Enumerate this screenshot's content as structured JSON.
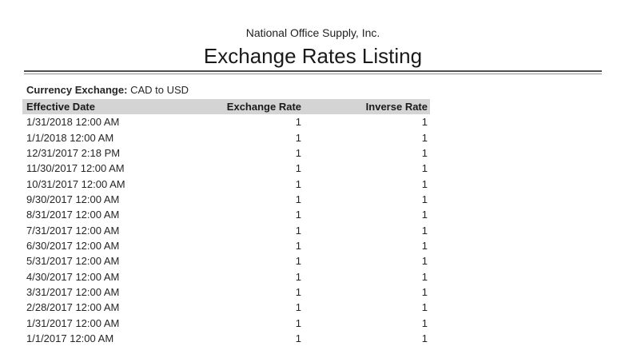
{
  "report": {
    "company": "National Office Supply, Inc.",
    "title": "Exchange Rates Listing",
    "filter_label": "Currency Exchange:",
    "filter_value": "CAD to USD",
    "table": {
      "columns": [
        "Effective Date",
        "Exchange Rate",
        "Inverse Rate"
      ],
      "rows": [
        {
          "effective_date": "1/31/2018 12:00 AM",
          "exchange_rate": "1",
          "inverse_rate": "1"
        },
        {
          "effective_date": "1/1/2018 12:00 AM",
          "exchange_rate": "1",
          "inverse_rate": "1"
        },
        {
          "effective_date": "12/31/2017 2:18 PM",
          "exchange_rate": "1",
          "inverse_rate": "1"
        },
        {
          "effective_date": "11/30/2017 12:00 AM",
          "exchange_rate": "1",
          "inverse_rate": "1"
        },
        {
          "effective_date": "10/31/2017 12:00 AM",
          "exchange_rate": "1",
          "inverse_rate": "1"
        },
        {
          "effective_date": "9/30/2017 12:00 AM",
          "exchange_rate": "1",
          "inverse_rate": "1"
        },
        {
          "effective_date": "8/31/2017 12:00 AM",
          "exchange_rate": "1",
          "inverse_rate": "1"
        },
        {
          "effective_date": "7/31/2017 12:00 AM",
          "exchange_rate": "1",
          "inverse_rate": "1"
        },
        {
          "effective_date": "6/30/2017 12:00 AM",
          "exchange_rate": "1",
          "inverse_rate": "1"
        },
        {
          "effective_date": "5/31/2017 12:00 AM",
          "exchange_rate": "1",
          "inverse_rate": "1"
        },
        {
          "effective_date": "4/30/2017 12:00 AM",
          "exchange_rate": "1",
          "inverse_rate": "1"
        },
        {
          "effective_date": "3/31/2017 12:00 AM",
          "exchange_rate": "1",
          "inverse_rate": "1"
        },
        {
          "effective_date": "2/28/2017 12:00 AM",
          "exchange_rate": "1",
          "inverse_rate": "1"
        },
        {
          "effective_date": "1/31/2017 12:00 AM",
          "exchange_rate": "1",
          "inverse_rate": "1"
        },
        {
          "effective_date": "1/1/2017 12:00 AM",
          "exchange_rate": "1",
          "inverse_rate": "1"
        }
      ]
    }
  },
  "colors": {
    "header_bg": "#d4d4d4",
    "rule_dark": "#4f4f4f",
    "rule_light": "#8f8f8f"
  }
}
